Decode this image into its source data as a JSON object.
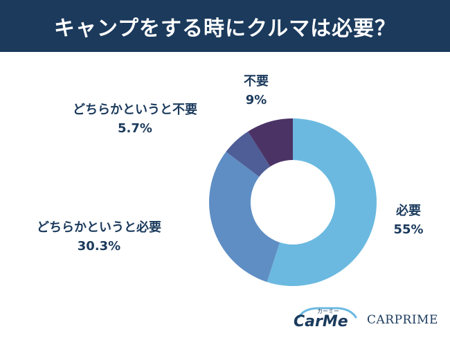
{
  "header": {
    "title": "キャンプをする時にクルマは必要？"
  },
  "chart_data": {
    "type": "pie",
    "title": "キャンプをする時にクルマは必要？",
    "donut": true,
    "slices": [
      {
        "label": "必要",
        "value": 55,
        "value_label": "55%",
        "color": "#6bb9e0"
      },
      {
        "label": "どちらかというと必要",
        "value": 30.3,
        "value_label": "30.3%",
        "color": "#5f8ec4"
      },
      {
        "label": "どちらかというと不要",
        "value": 5.7,
        "value_label": "5.7%",
        "color": "#4f5e96"
      },
      {
        "label": "不要",
        "value": 9,
        "value_label": "9%",
        "color": "#4b3366"
      }
    ],
    "start": "12 o'clock",
    "direction": "clockwise"
  },
  "logos": {
    "carme": {
      "kana": "カーミー",
      "word": "CarMe"
    },
    "carprime": {
      "word": "CARPRIME"
    }
  }
}
